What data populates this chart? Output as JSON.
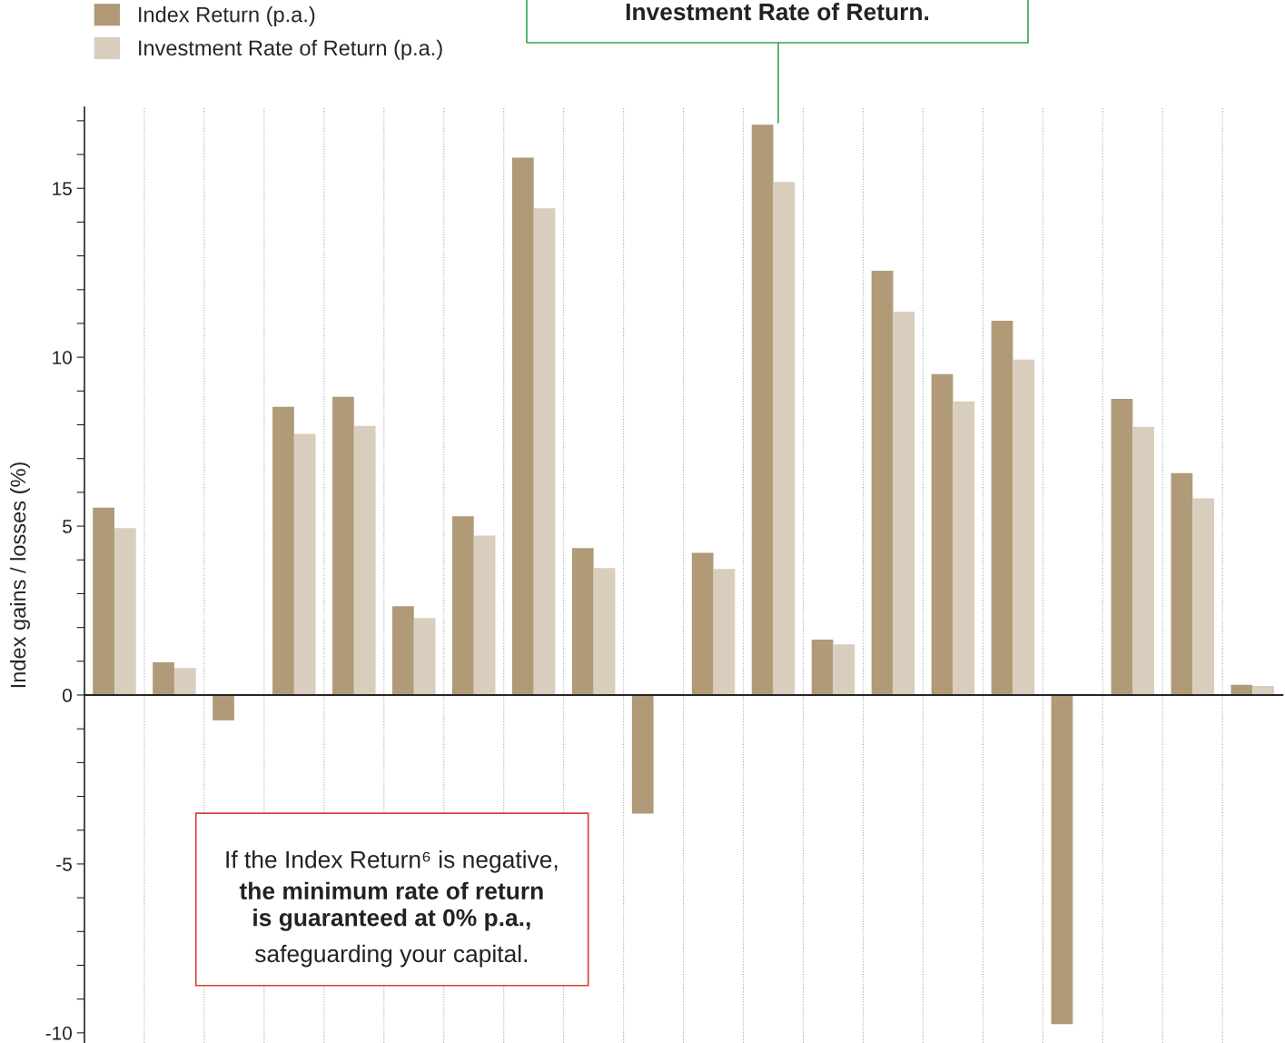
{
  "chart_data": {
    "type": "bar",
    "ylabel": "Index gains / losses (%)",
    "categories": [
      null,
      null,
      null,
      null,
      null,
      null,
      null,
      null,
      null,
      null,
      null,
      null,
      null,
      null,
      null,
      null,
      null,
      null,
      null,
      null
    ],
    "series": [
      {
        "name": "Index Return (p.a.)",
        "color": "#b09a78",
        "values": [
          5.55,
          0.97,
          -0.75,
          8.53,
          8.83,
          2.63,
          5.29,
          15.91,
          4.35,
          -3.51,
          4.21,
          16.88,
          1.64,
          12.56,
          9.5,
          11.08,
          -9.74,
          8.77,
          6.57,
          0.3
        ]
      },
      {
        "name": "Investment Rate of Return (p.a.)",
        "color": "#d9cdbd",
        "values": [
          4.94,
          0.8,
          0,
          7.73,
          7.97,
          2.28,
          4.72,
          14.41,
          3.76,
          0,
          3.73,
          15.19,
          1.5,
          11.35,
          8.69,
          9.93,
          0,
          7.94,
          5.82,
          0.27
        ]
      }
    ],
    "ylim": [
      -10.3,
      17.4
    ],
    "yticks": [
      {
        "value": -10,
        "label": "-10"
      },
      {
        "value": -9,
        "label": null
      },
      {
        "value": -8,
        "label": null
      },
      {
        "value": -7,
        "label": null
      },
      {
        "value": -6,
        "label": null
      },
      {
        "value": -5,
        "label": "-5"
      },
      {
        "value": -4,
        "label": null
      },
      {
        "value": -3,
        "label": null
      },
      {
        "value": -2,
        "label": null
      },
      {
        "value": -1,
        "label": null
      },
      0,
      {
        "value": 1,
        "label": null
      },
      {
        "value": 2,
        "label": null
      },
      {
        "value": 3,
        "label": null
      },
      {
        "value": 4,
        "label": null
      },
      5,
      {
        "value": 6,
        "label": null
      },
      {
        "value": 7,
        "label": null
      },
      {
        "value": 8,
        "label": null
      },
      {
        "value": 9,
        "label": null
      },
      10,
      {
        "value": 11,
        "label": null
      },
      {
        "value": 12,
        "label": null
      },
      {
        "value": 13,
        "label": null
      },
      {
        "value": 14,
        "label": null
      },
      15,
      {
        "value": 16,
        "label": null
      },
      {
        "value": 17,
        "label": null
      }
    ],
    "grid": "x",
    "legend": "top left",
    "annotations": [
      "Investment Rate of Return.",
      "If the Index Return⁶ is negative,",
      "the minimum rate of return\nis guaranteed at 0% p.a.,",
      "safeguarding your capital."
    ]
  }
}
